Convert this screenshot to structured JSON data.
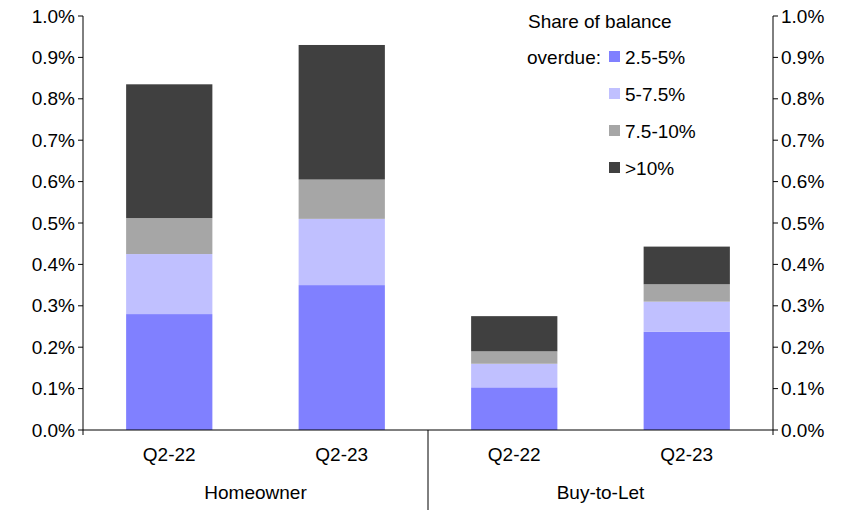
{
  "chart_data": {
    "type": "bar",
    "stacked": true,
    "categories": [
      "Q2-22",
      "Q2-23",
      "Q2-22",
      "Q2-23"
    ],
    "category_groups": [
      "Homeowner",
      "Homeowner",
      "Buy-to-Let",
      "Buy-to-Let"
    ],
    "series": [
      {
        "name": "2.5-5%",
        "color": "#8080ff",
        "values": [
          0.28,
          0.35,
          0.103,
          0.237
        ]
      },
      {
        "name": "5-7.5%",
        "color": "#c0c0ff",
        "values": [
          0.145,
          0.16,
          0.057,
          0.073
        ]
      },
      {
        "name": "7.5-10%",
        "color": "#a6a6a6",
        "values": [
          0.087,
          0.095,
          0.03,
          0.042
        ]
      },
      {
        "name": ">10%",
        "color": "#404040",
        "values": [
          0.323,
          0.325,
          0.085,
          0.091
        ]
      }
    ],
    "legend": "top-right",
    "legend_title": "Share of balance overdue:",
    "grid": false,
    "ylim": [
      0,
      1.0
    ],
    "yticks": [
      {
        "value": 0,
        "label": "0.0%"
      },
      {
        "value": 0.1,
        "label": "0.1%"
      },
      {
        "value": 0.2,
        "label": "0.2%"
      },
      {
        "value": 0.3,
        "label": "0.3%"
      },
      {
        "value": 0.4,
        "label": "0.4%"
      },
      {
        "value": 0.5,
        "label": "0.5%"
      },
      {
        "value": 0.6,
        "label": "0.6%"
      },
      {
        "value": 0.7,
        "label": "0.7%"
      },
      {
        "value": 0.8,
        "label": "0.8%"
      },
      {
        "value": 0.9,
        "label": "0.9%"
      },
      {
        "value": 1.0,
        "label": "1.0%"
      }
    ],
    "y2lim": [
      0,
      1.0
    ],
    "y2ticks": [
      {
        "value": 0,
        "label": "0.0%"
      },
      {
        "value": 0.1,
        "label": "0.1%"
      },
      {
        "value": 0.2,
        "label": "0.2%"
      },
      {
        "value": 0.3,
        "label": "0.3%"
      },
      {
        "value": 0.4,
        "label": "0.4%"
      },
      {
        "value": 0.5,
        "label": "0.5%"
      },
      {
        "value": 0.6,
        "label": "0.6%"
      },
      {
        "value": 0.7,
        "label": "0.7%"
      },
      {
        "value": 0.8,
        "label": "0.8%"
      },
      {
        "value": 0.9,
        "label": "0.9%"
      },
      {
        "value": 1.0,
        "label": "1.0%"
      }
    ]
  }
}
